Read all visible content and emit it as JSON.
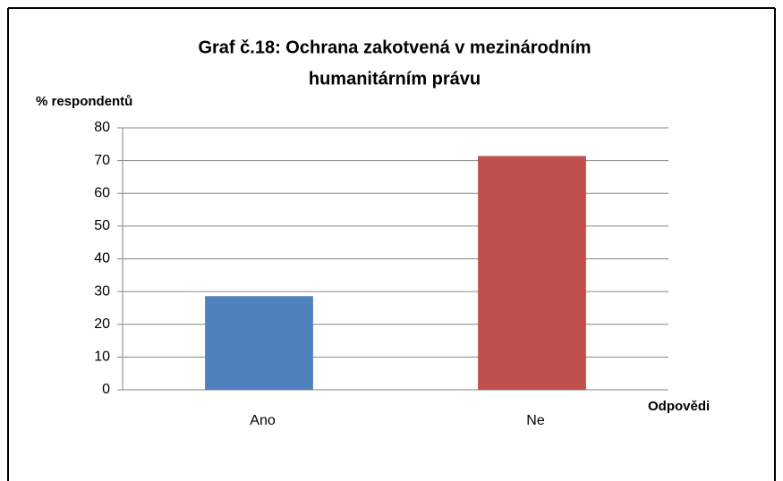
{
  "chart_data": {
    "type": "bar",
    "title": [
      "Graf č.18: Ochrana zakotvená v mezinárodním",
      "humanitárním právu"
    ],
    "y_label": "% respondentů",
    "x_label": "Odpovědi",
    "categories": [
      "Ano",
      "Ne"
    ],
    "values": [
      28.6,
      71.4
    ],
    "colors": [
      "#4f81bd",
      "#c0504d"
    ],
    "ylim": [
      0,
      80
    ],
    "yticks": [
      0,
      10,
      20,
      30,
      40,
      50,
      60,
      70,
      80
    ],
    "grid": true
  }
}
